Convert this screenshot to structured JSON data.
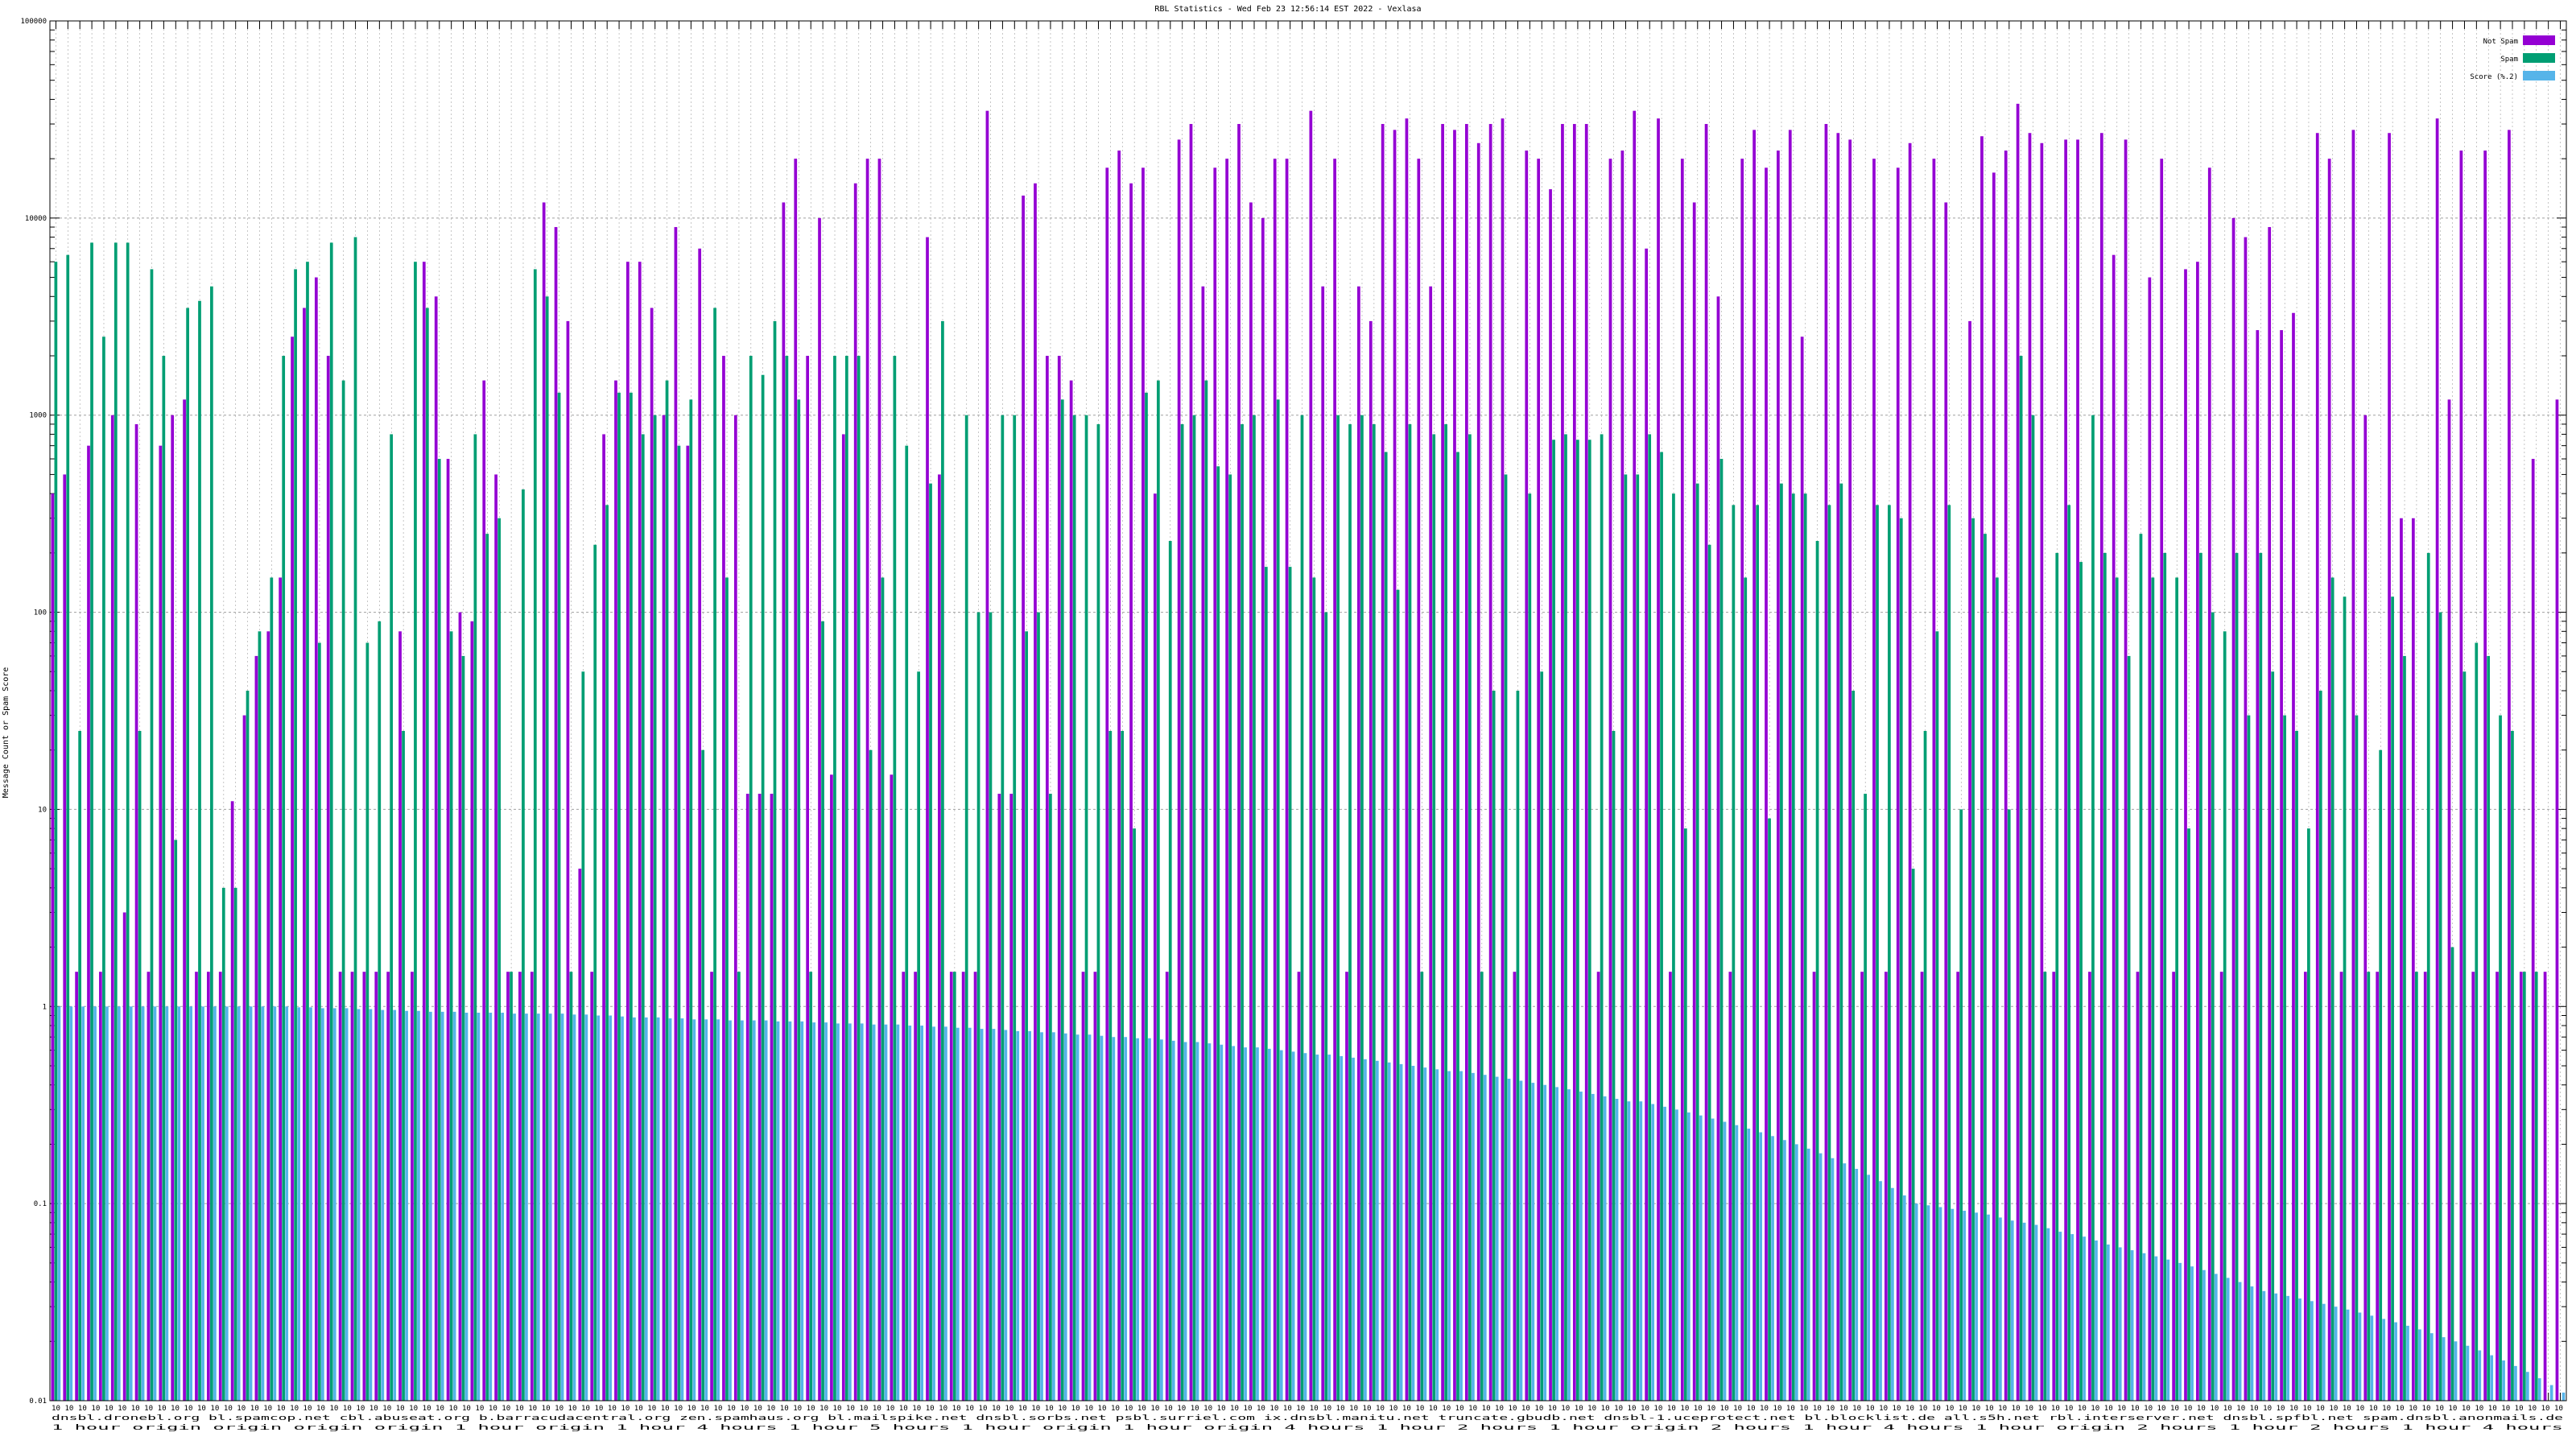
{
  "chart_data": {
    "type": "bar",
    "title": "RBL Statistics - Wed Feb 23 12:56:14 EST 2022 - Vexlasa",
    "ylabel": "Message Count or Spam Score",
    "xlabel": "",
    "yscale": "log",
    "ylim": [
      0.01,
      100000
    ],
    "ytick_labels": [
      "0.01",
      "0.1",
      "1",
      "10",
      "100",
      "1000",
      "10000",
      "100000"
    ],
    "grid": true,
    "legend_position": "top-right",
    "colors": {
      "not_spam": "#9400d3",
      "spam": "#009e73",
      "score": "#56b4e9",
      "axis": "#000000",
      "grid": "#a0a0a0"
    },
    "category_label_rows": [
      "10 10 10 10 10 10 10 10 10 10 10 10 10 10 10 10 10 10 10 10 10 10 10 10 10 10 10 10 10 10 10 10 10 10 10 10 10 10 10 10 10 10 10 10 10 10 10 10 10 10 10 10 10 10 10 10 10 10 10 10 10 10 10 10 10 10 10 10 10 10 10 10 10 10 10 10 10 10 10 10 10 10 10 10 10 10 10 10 10 10 10 10 10 10 10 10 10 10 10 10 10 10 10 10 10 10 10 10 10 10 10 10 10 10 10 10 10 10 10 10 10 10 10 10 10 10 10 10 10 10 10 10 10 10 10 10 10 10 10 10 10 10 10 10 10 10 10 10 10 10 10 10 10 10 10 10 10 10 10 10 10 10 10 10 10 10 10 10 10 10 10 10 10 10 10 10 10 10 10 10 10 10 10 10 10 10 10 10 10 10",
      "dnsbl.dronebl.org bl.spamcop.net cbl.abuseat.org b.barracudacentral.org zen.spamhaus.org bl.mailspike.net dnsbl.sorbs.net psbl.surriel.com ix.dnsbl.manitu.net truncate.gbudb.net dnsbl-1.uceprotect.net bl.blocklist.de all.s5h.net rbl.interserver.net dnsbl.spfbl.net spam.dnsbl.anonmails.de",
      "1 hour  origin  origin  origin  origin  1 hour  origin  1 hour  4 hours 1 hour  5 hours 1 hour  origin  1 hour  origin  4 hours 1 hour  2 hours 1 hour  origin  2 hours 1 hour  4 hours 1 hour  origin  2 hours 1 hour  2 hours 1 hour  4 hours"
    ],
    "series": [
      {
        "name": "Not Spam",
        "values": [
          400,
          500,
          1.5,
          700,
          1.5,
          1000,
          3,
          900,
          1.5,
          700,
          1000,
          1200,
          1.5,
          1.5,
          1.5,
          11,
          30,
          60,
          80,
          150,
          2500,
          3500,
          5000,
          2000,
          1.5,
          1.5,
          1.5,
          1.5,
          1.5,
          80,
          1.5,
          6000,
          4000,
          600,
          100,
          90,
          1500,
          500,
          1.5,
          1.5,
          1.5,
          12000,
          9000,
          3000,
          5,
          1.5,
          800,
          1500,
          6000,
          6000,
          3500,
          1000,
          9000,
          700,
          7000,
          1.5,
          2000,
          1000,
          12,
          12,
          12,
          12000,
          20000,
          2000,
          10000,
          15,
          800,
          15000,
          20000,
          20000,
          15,
          1.5,
          1.5,
          8000,
          500,
          1.5,
          1.5,
          1.5,
          35000,
          12,
          12,
          13000,
          15000,
          2000,
          2000,
          1500,
          1.5,
          1.5,
          18000,
          22000,
          15000,
          18000,
          400,
          1.5,
          25000,
          30000,
          4500,
          18000,
          20000,
          30000,
          12000,
          10000,
          20000,
          20000,
          1.5,
          35000,
          4500,
          20000,
          1.5,
          4500,
          3000,
          30000,
          28000,
          32000,
          20000,
          4500,
          30000,
          28000,
          30000,
          24000,
          30000,
          32000,
          1.5,
          22000,
          20000,
          14000,
          30000,
          30000,
          30000,
          1.5,
          20000,
          22000,
          35000,
          7000,
          32000,
          1.5,
          20000,
          12000,
          30000,
          4000,
          1.5,
          20000,
          28000,
          18000,
          22000,
          28000,
          2500,
          1.5,
          30000,
          27000,
          25000,
          1.5,
          20000,
          1.5,
          18000,
          24000,
          1.5,
          20000,
          12000,
          1.5,
          3000,
          26000,
          17000,
          22000,
          38000,
          27000,
          24000,
          1.5,
          25000,
          25000,
          1.5,
          27000,
          6500,
          25000,
          1.5,
          5000,
          20000,
          1.5,
          5500,
          6000,
          18000,
          1.5,
          10000,
          8000,
          2700,
          9000,
          2700,
          3300,
          1.5,
          27000,
          20000,
          1.5,
          28000,
          1000,
          1.5,
          27000,
          300,
          300,
          1.5,
          32000,
          1200,
          22000,
          1.5,
          22000,
          1.5,
          28000,
          1.5,
          600,
          1.5,
          1200
        ]
      },
      {
        "name": "Spam",
        "values": [
          6000,
          6500,
          25,
          7500,
          2500,
          7500,
          7500,
          25,
          5500,
          2000,
          7,
          3500,
          3800,
          4500,
          4,
          4,
          40,
          80,
          150,
          2000,
          5500,
          6000,
          70,
          7500,
          1500,
          8000,
          70,
          90,
          800,
          25,
          6000,
          3500,
          600,
          80,
          60,
          800,
          250,
          300,
          1.5,
          420,
          5500,
          4000,
          1300,
          1.5,
          50,
          220,
          350,
          1300,
          1300,
          800,
          1000,
          1500,
          700,
          1200,
          20,
          3500,
          150,
          1.5,
          2000,
          1600,
          3000,
          2000,
          1200,
          1.5,
          90,
          2000,
          2000,
          2000,
          20,
          150,
          2000,
          700,
          50,
          450,
          3000,
          1.5,
          1000,
          100,
          100,
          1000,
          1000,
          80,
          100,
          12,
          1200,
          1000,
          1000,
          900,
          25,
          25,
          8,
          1300,
          1500,
          230,
          900,
          1000,
          1500,
          550,
          500,
          900,
          1000,
          170,
          1200,
          170,
          1000,
          150,
          100,
          1000,
          900,
          1000,
          900,
          650,
          130,
          900,
          1.5,
          800,
          900,
          650,
          800,
          1.5,
          40,
          500,
          40,
          400,
          50,
          750,
          800,
          750,
          750,
          800,
          25,
          500,
          500,
          800,
          650,
          400,
          8,
          450,
          220,
          600,
          350,
          150,
          350,
          9,
          450,
          400,
          400,
          230,
          350,
          450,
          40,
          12,
          350,
          350,
          300,
          5,
          25,
          80,
          350,
          10,
          300,
          250,
          150,
          10,
          2000,
          1000,
          1.5,
          200,
          350,
          180,
          1000,
          200,
          150,
          60,
          250,
          150,
          200,
          150,
          8,
          200,
          100,
          80,
          200,
          30,
          200,
          50,
          30,
          25,
          8,
          40,
          150,
          120,
          30,
          1.5,
          20,
          120,
          60,
          1.5,
          200,
          100,
          2,
          50,
          70,
          60,
          30,
          25,
          1.5,
          1.5
        ]
      },
      {
        "name": "Score (%.2)",
        "values": [
          1,
          1,
          1,
          1,
          1,
          1,
          1,
          1,
          1,
          1,
          1,
          1,
          1,
          1,
          1,
          1,
          1,
          1,
          1,
          1,
          0.99,
          0.99,
          0.98,
          0.98,
          0.98,
          0.97,
          0.97,
          0.96,
          0.96,
          0.95,
          0.95,
          0.94,
          0.94,
          0.94,
          0.93,
          0.93,
          0.93,
          0.93,
          0.92,
          0.92,
          0.92,
          0.92,
          0.92,
          0.91,
          0.91,
          0.9,
          0.9,
          0.89,
          0.88,
          0.88,
          0.88,
          0.87,
          0.87,
          0.86,
          0.86,
          0.86,
          0.85,
          0.85,
          0.85,
          0.85,
          0.84,
          0.84,
          0.84,
          0.83,
          0.83,
          0.82,
          0.82,
          0.82,
          0.81,
          0.81,
          0.81,
          0.8,
          0.8,
          0.79,
          0.79,
          0.78,
          0.78,
          0.77,
          0.77,
          0.76,
          0.75,
          0.75,
          0.74,
          0.74,
          0.73,
          0.72,
          0.72,
          0.71,
          0.7,
          0.7,
          0.69,
          0.69,
          0.68,
          0.67,
          0.66,
          0.66,
          0.65,
          0.64,
          0.63,
          0.62,
          0.62,
          0.61,
          0.6,
          0.59,
          0.58,
          0.57,
          0.57,
          0.56,
          0.55,
          0.54,
          0.53,
          0.52,
          0.51,
          0.5,
          0.49,
          0.48,
          0.47,
          0.47,
          0.46,
          0.45,
          0.44,
          0.43,
          0.42,
          0.41,
          0.4,
          0.39,
          0.38,
          0.37,
          0.36,
          0.35,
          0.34,
          0.33,
          0.33,
          0.32,
          0.31,
          0.3,
          0.29,
          0.28,
          0.27,
          0.26,
          0.25,
          0.24,
          0.23,
          0.22,
          0.21,
          0.2,
          0.19,
          0.18,
          0.17,
          0.16,
          0.15,
          0.14,
          0.13,
          0.12,
          0.11,
          0.1,
          0.098,
          0.096,
          0.094,
          0.092,
          0.09,
          0.088,
          0.085,
          0.082,
          0.08,
          0.078,
          0.075,
          0.072,
          0.07,
          0.068,
          0.065,
          0.062,
          0.06,
          0.058,
          0.056,
          0.054,
          0.052,
          0.05,
          0.048,
          0.046,
          0.044,
          0.042,
          0.04,
          0.038,
          0.036,
          0.035,
          0.034,
          0.033,
          0.032,
          0.031,
          0.03,
          0.029,
          0.028,
          0.027,
          0.026,
          0.025,
          0.024,
          0.023,
          0.022,
          0.021,
          0.02,
          0.019,
          0.018,
          0.017,
          0.016,
          0.015,
          0.014,
          0.013,
          0.012,
          0.011,
          0.0105,
          0.0103,
          0.0101,
          0.01
        ]
      }
    ]
  }
}
